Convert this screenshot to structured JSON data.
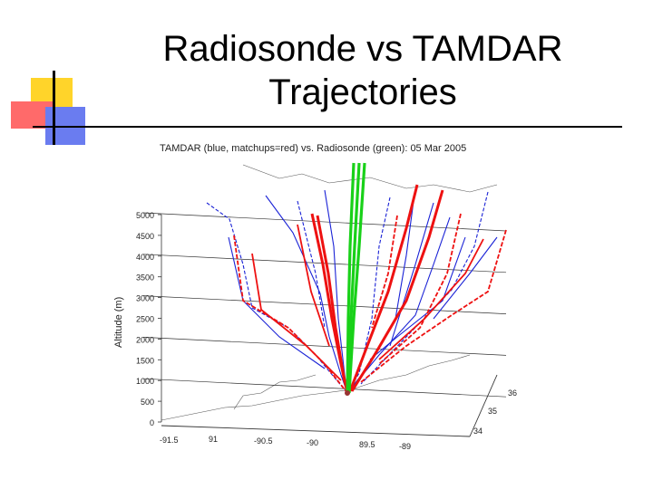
{
  "slide": {
    "title_line1": "Radiosonde vs TAMDAR",
    "title_line2": "Trajectories"
  },
  "chart_data": {
    "type": "line",
    "title": "TAMDAR (blue, matchups=red) vs. Radiosonde (green): 05 Mar 2005",
    "zlabel": "Altitude (m)",
    "zlim": [
      0,
      5000
    ],
    "z_ticks": [
      0,
      500,
      1000,
      1500,
      2000,
      2500,
      3000,
      3500,
      4000,
      4500,
      5000
    ],
    "x_ticks": [
      "-91.5",
      "91",
      "-90.5",
      "-90",
      "89.5",
      "-89"
    ],
    "y_ticks": [
      "34",
      "35",
      "36"
    ],
    "series_colors": {
      "tamdar": "#1a22d6",
      "matchups": "#ee1111",
      "radiosonde": "#19d119"
    },
    "grid": true
  }
}
